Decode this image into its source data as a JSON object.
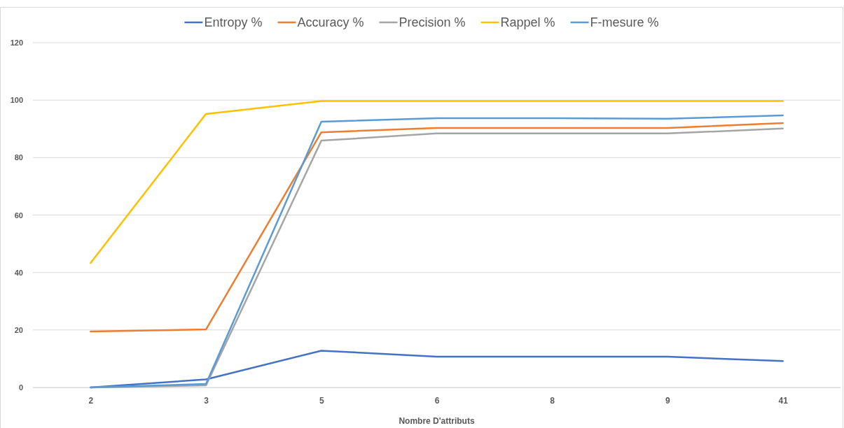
{
  "chart_data": {
    "type": "line",
    "xlabel": "Nombre D'attributs",
    "categories": [
      "2",
      "3",
      "5",
      "6",
      "8",
      "9",
      "41"
    ],
    "series": [
      {
        "name": "Entropy %",
        "color": "#4472c4",
        "values": [
          0,
          2.8,
          12.8,
          10.7,
          10.7,
          10.7,
          9.2
        ]
      },
      {
        "name": "Accuracy %",
        "color": "#ed7d31",
        "values": [
          19.5,
          20.2,
          88.8,
          90.3,
          90.3,
          90.3,
          92.0
        ]
      },
      {
        "name": "Precision %",
        "color": "#a5a5a5",
        "values": [
          0,
          0.7,
          85.9,
          88.4,
          88.4,
          88.4,
          90.1
        ]
      },
      {
        "name": "Rappel %",
        "color": "#ffc000",
        "values": [
          43.3,
          95.2,
          99.7,
          99.7,
          99.7,
          99.7,
          99.7
        ]
      },
      {
        "name": "F-mesure %",
        "color": "#5b9bd5",
        "values": [
          0,
          1.2,
          92.5,
          93.7,
          93.7,
          93.5,
          94.7
        ]
      }
    ],
    "ylim": [
      0,
      120
    ],
    "yticks": [
      0,
      20,
      40,
      60,
      80,
      100,
      120
    ],
    "grid": "y",
    "legend": "top",
    "marker": "none",
    "line_style": "solid"
  }
}
